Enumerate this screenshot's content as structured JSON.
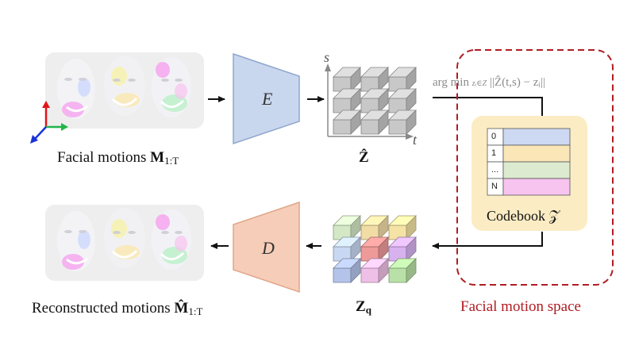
{
  "labels": {
    "input_motions": "Facial motions",
    "input_symbol": "M",
    "input_subscript": "1:T",
    "output_motions": "Reconstructed motions",
    "output_symbol": "M̂",
    "output_subscript": "1:T",
    "encoder": "E",
    "decoder": "D",
    "latent": "Ẑ",
    "quantized": "Z",
    "quantized_subscript": "q",
    "axis_s": "s",
    "axis_t": "t",
    "argmin": "arg min",
    "argmin_subscript": "zᵢ∈Z",
    "argmin_expr": "||Ẑ(t,s) − zᵢ||",
    "codebook": "Codebook 𝒵",
    "motion_space": "Facial motion space"
  },
  "codebook_rows": [
    "0",
    "1",
    "...",
    "N"
  ],
  "colors": {
    "encoder": "#c9d7ee",
    "decoder": "#f6cdb8",
    "codebook_bg": "#fbecc4",
    "row_colors": [
      "#cdd9f2",
      "#fbe6b7",
      "#dcebcf",
      "#f7c3ef"
    ],
    "motion_space_border": "#b01c22",
    "cube_gray": "#c8c8c8"
  }
}
